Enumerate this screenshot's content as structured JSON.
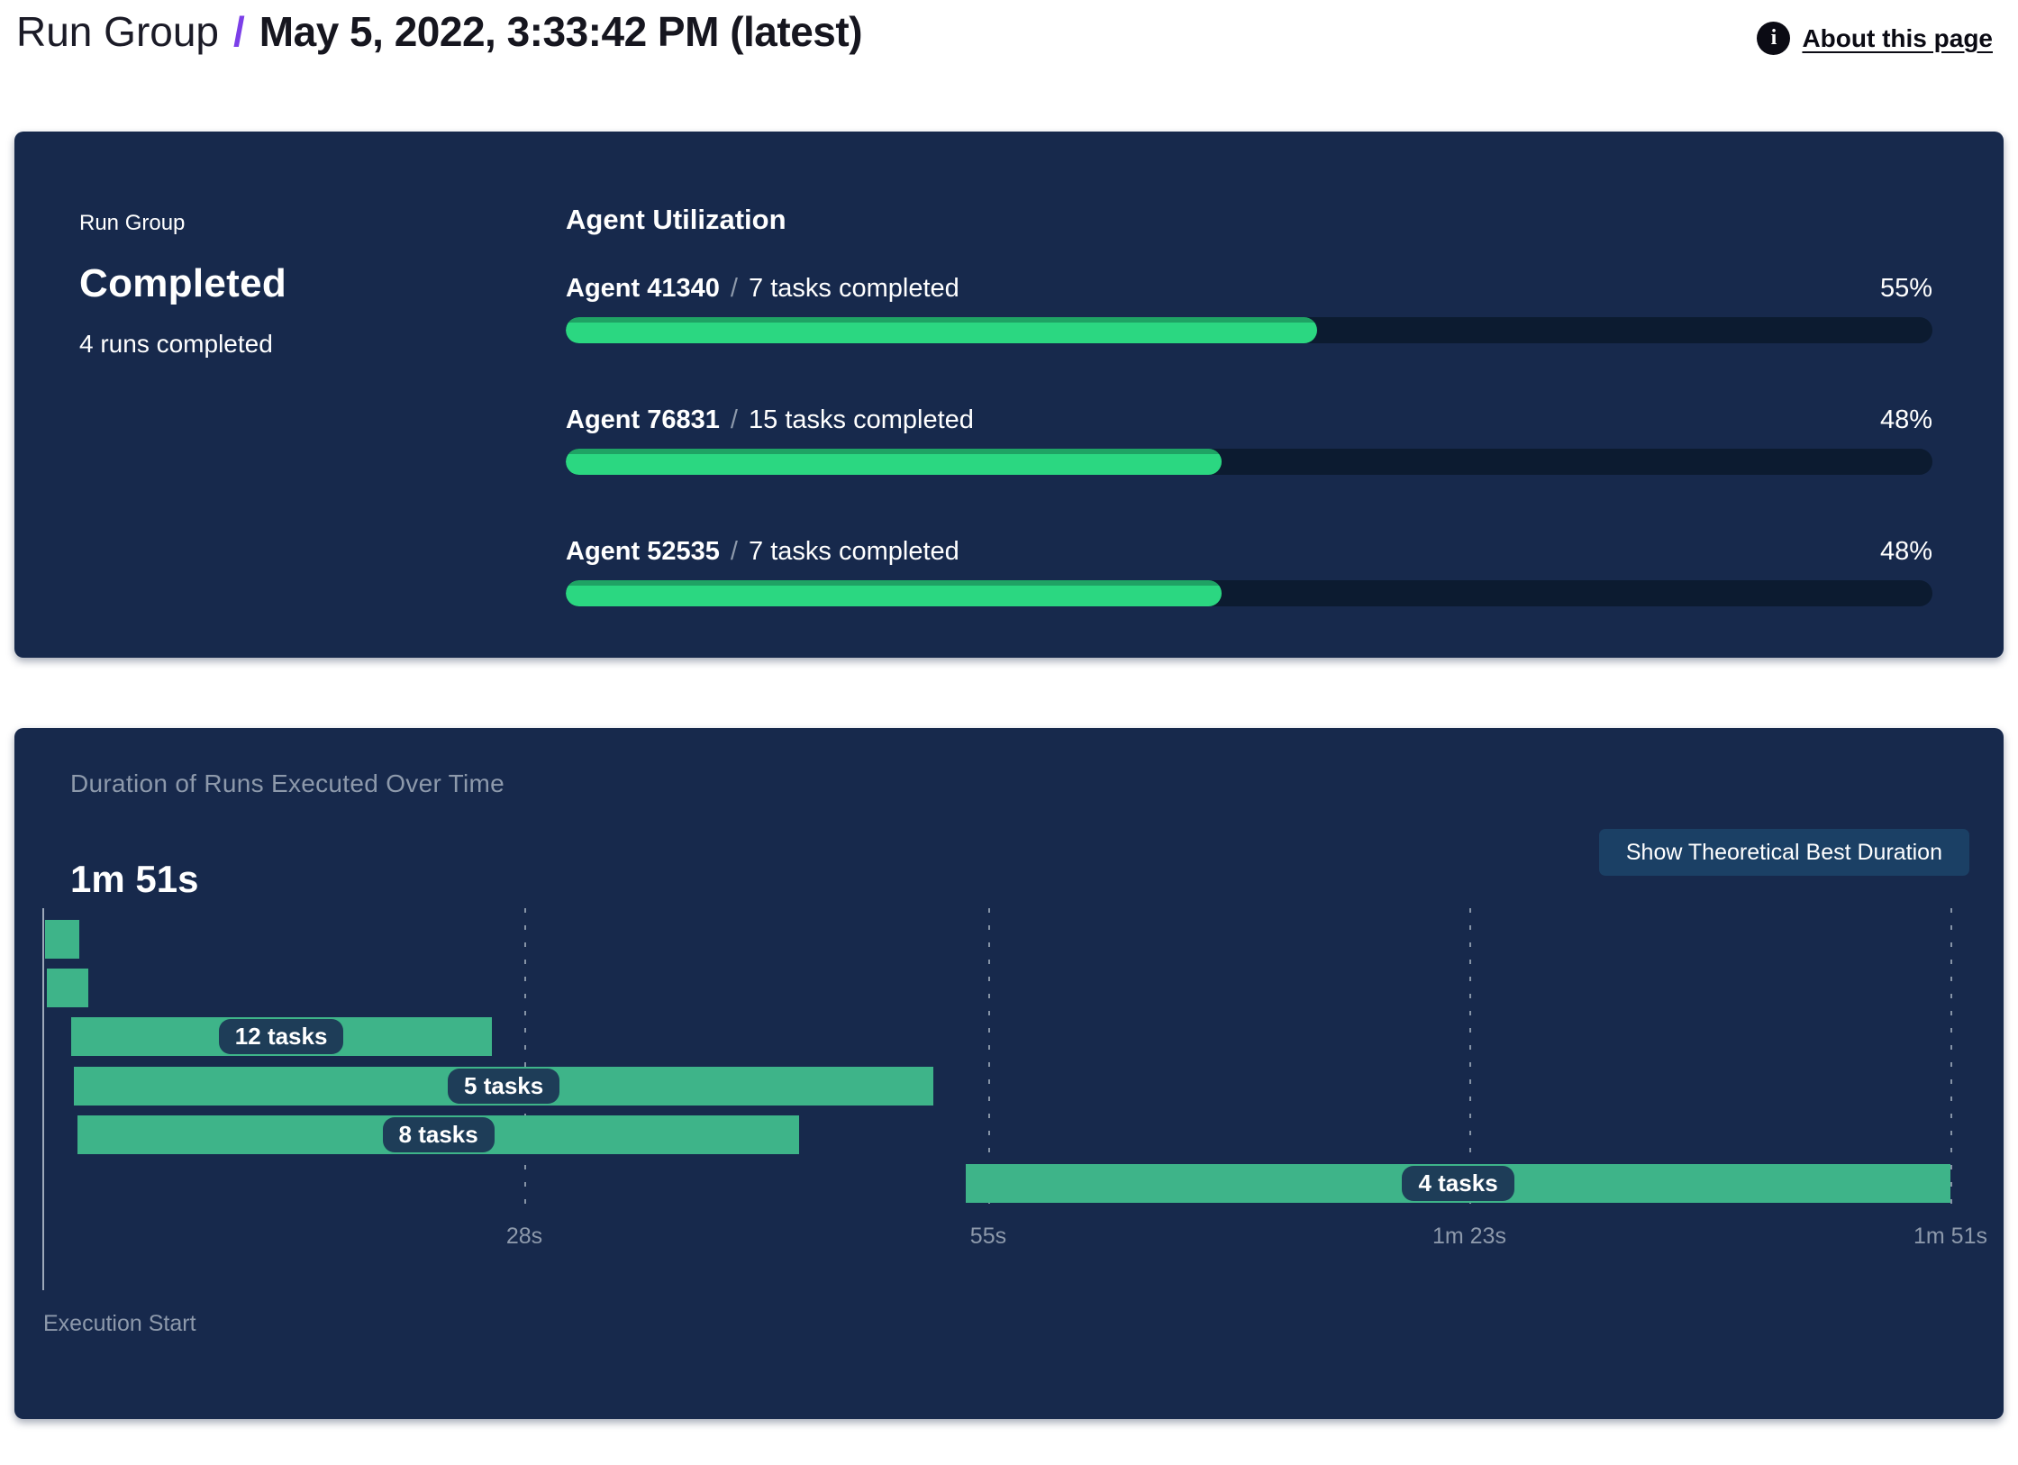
{
  "header": {
    "breadcrumb_root": "Run Group",
    "separator": "/",
    "title": "May 5, 2022, 3:33:42 PM (latest)",
    "about_link": "About this page",
    "info_icon_glyph": "i"
  },
  "colors": {
    "panel_navy": "#17294c",
    "progress_green": "#2bd781",
    "progress_green_dark": "#1fa364",
    "progress_track": "#0c1b30",
    "gantt_teal": "#3eb489",
    "pill_navy": "#1e3d58",
    "button_navy": "#1b4065",
    "accent_purple": "#7c3fe8",
    "muted_gray": "#8d99ab"
  },
  "status_panel": {
    "label": "Run Group",
    "status": "Completed",
    "runs_completed": "4 runs completed",
    "utilization": {
      "title": "Agent Utilization",
      "agents": [
        {
          "name": "Agent 41340",
          "separator": "/",
          "tasks": "7 tasks completed",
          "percent_label": "55%",
          "percent": 55
        },
        {
          "name": "Agent 76831",
          "separator": "/",
          "tasks": "15 tasks completed",
          "percent_label": "48%",
          "percent": 48
        },
        {
          "name": "Agent 52535",
          "separator": "/",
          "tasks": "7 tasks completed",
          "percent_label": "48%",
          "percent": 48
        }
      ]
    }
  },
  "duration_panel": {
    "title": "Duration of Runs Executed Over Time",
    "total_duration": "1m 51s",
    "button_label": "Show Theoretical Best Duration",
    "execution_start_label": "Execution Start",
    "chart": {
      "type": "gantt",
      "time_axis_max_s": 111,
      "ticks": [
        {
          "label": "28s",
          "seconds": 28
        },
        {
          "label": "55s",
          "seconds": 55
        },
        {
          "label": "1m 23s",
          "seconds": 83
        },
        {
          "label": "1m 51s",
          "seconds": 111
        }
      ],
      "bars": [
        {
          "label": "",
          "start_s": 0.1,
          "end_s": 2.1
        },
        {
          "label": "",
          "start_s": 0.2,
          "end_s": 2.6
        },
        {
          "label": "12 tasks",
          "start_s": 1.6,
          "end_s": 26.1
        },
        {
          "label": "5 tasks",
          "start_s": 1.8,
          "end_s": 51.8
        },
        {
          "label": "8 tasks",
          "start_s": 2.0,
          "end_s": 44.0
        },
        {
          "label": "4 tasks",
          "start_s": 53.7,
          "end_s": 111.0
        }
      ]
    }
  }
}
